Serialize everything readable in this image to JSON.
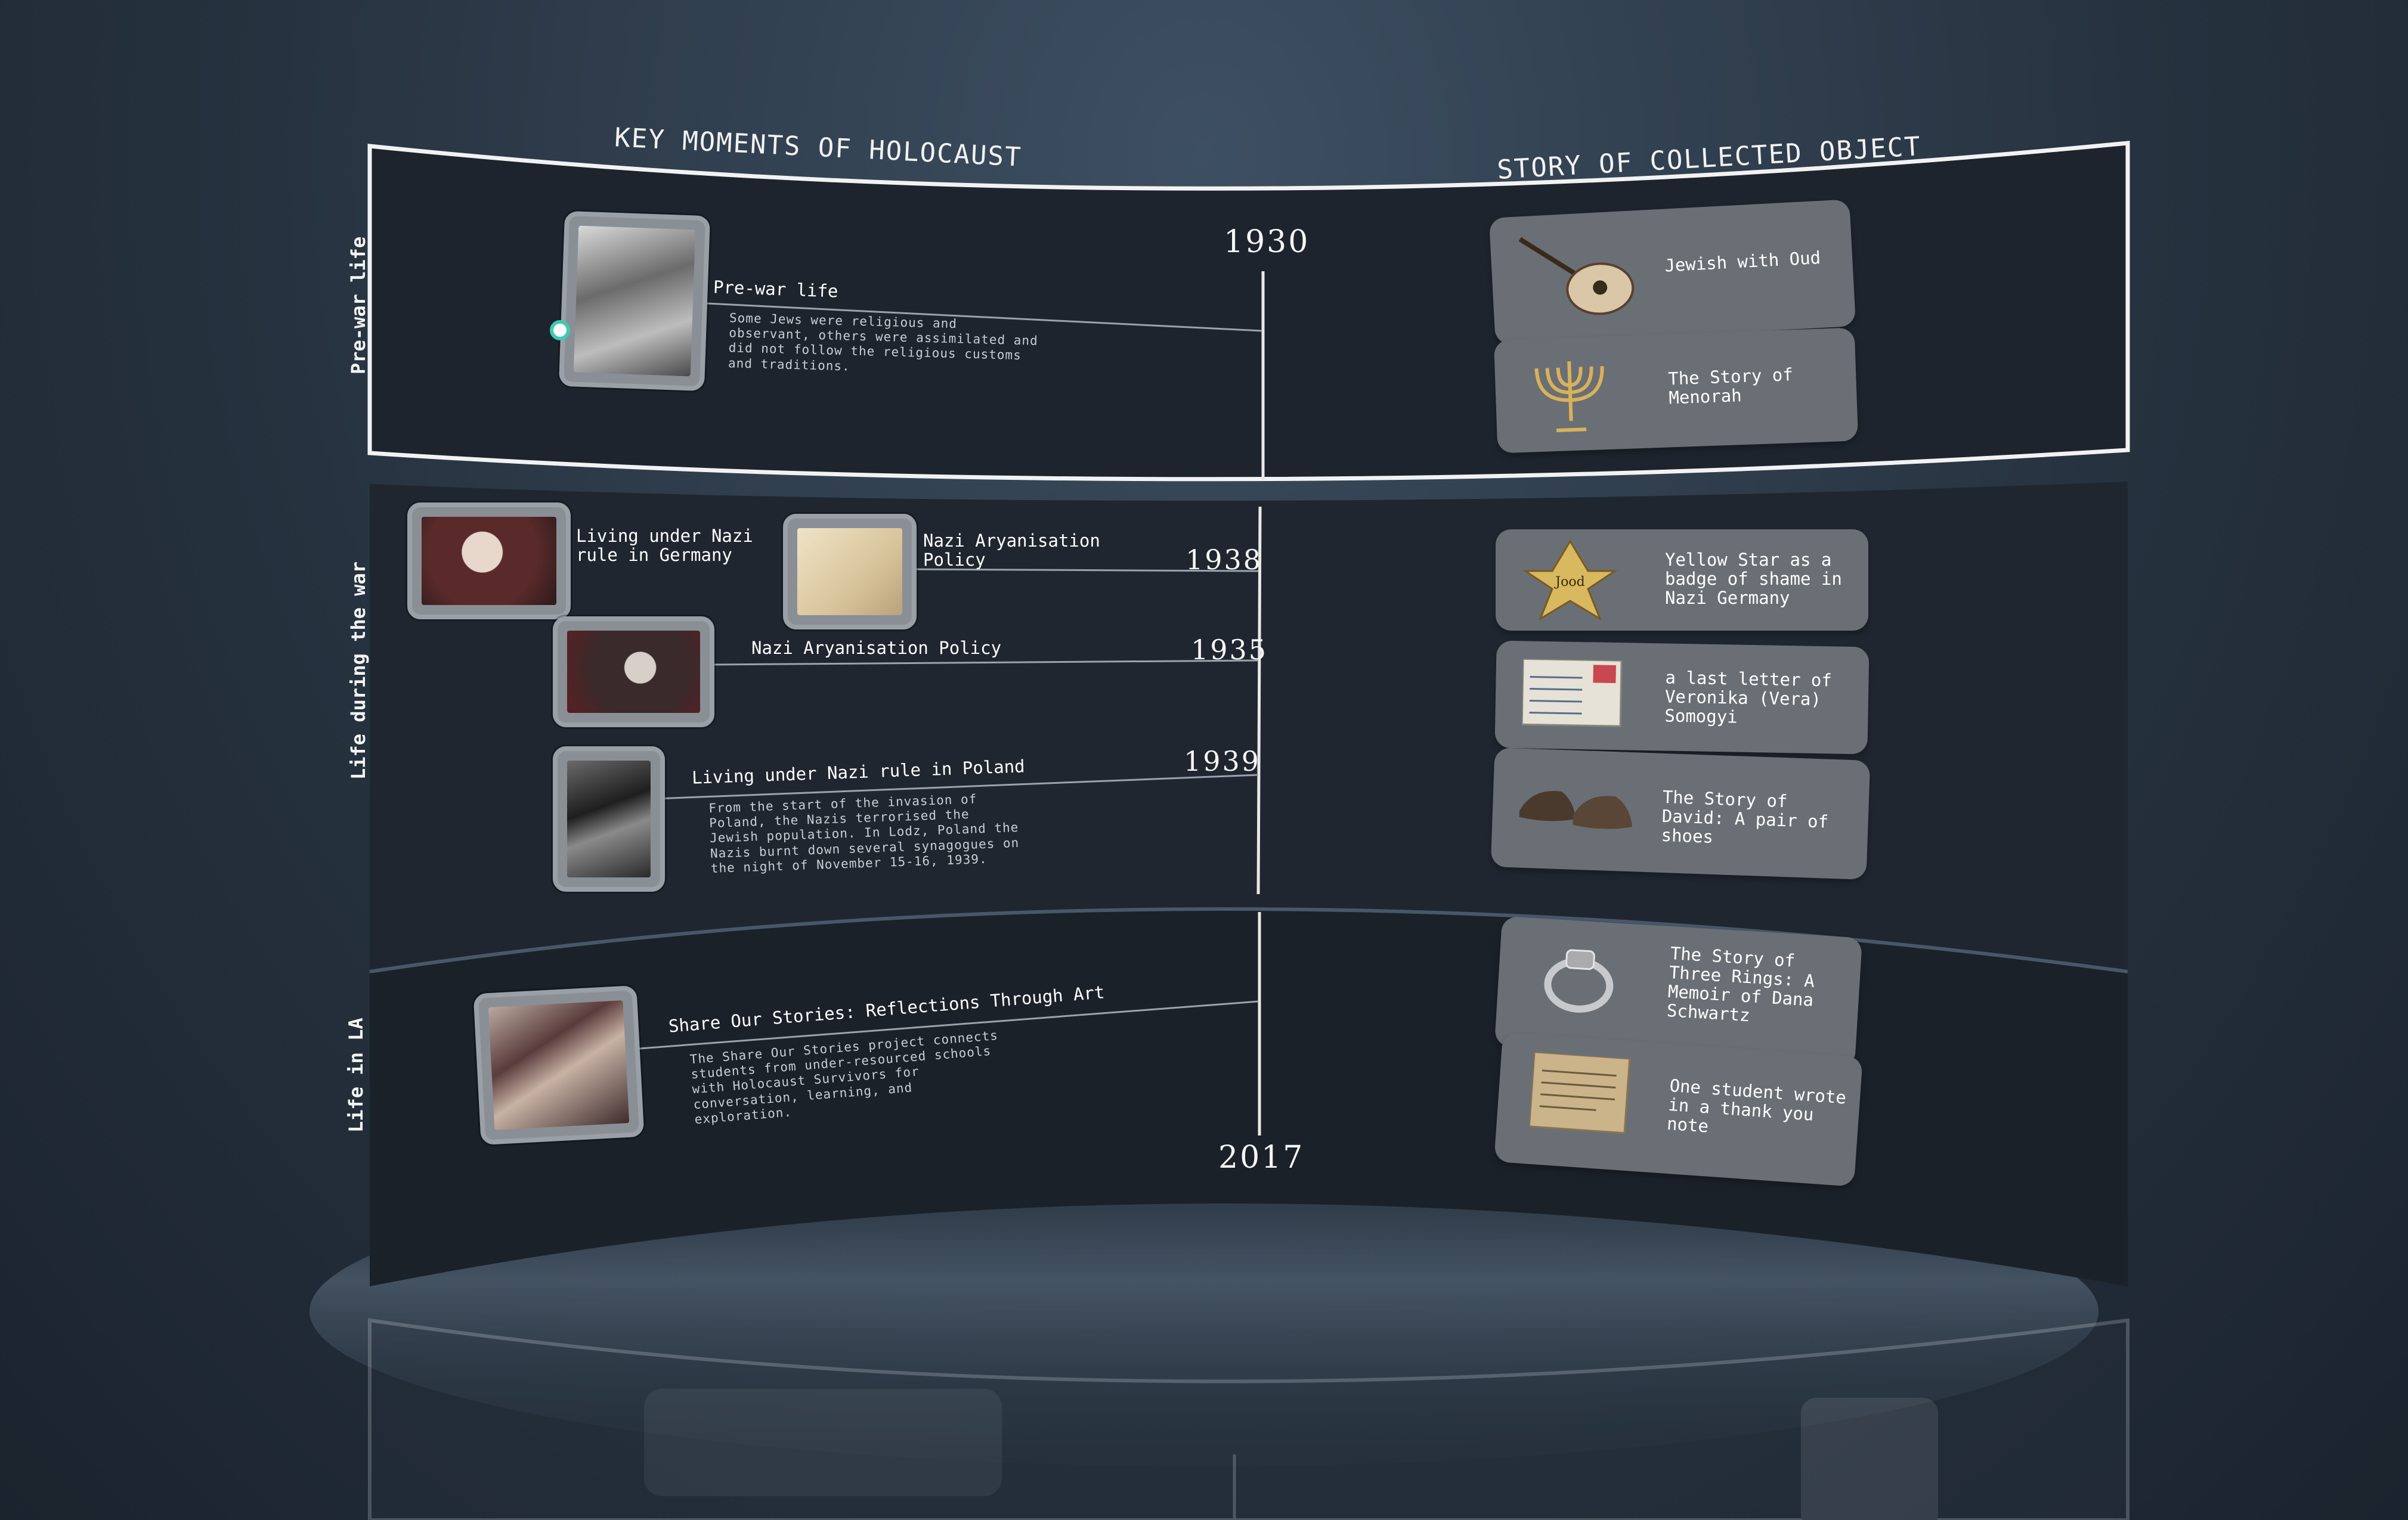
{
  "columns": {
    "left_heading": "KEY MOMENTS OF HOLOCAUST",
    "right_heading": "STORY OF COLLECTED OBJECT"
  },
  "sections": [
    {
      "id": "pre-war",
      "label": "Pre-war life"
    },
    {
      "id": "during-war",
      "label": "Life during the war"
    },
    {
      "id": "la",
      "label": "Life in LA"
    }
  ],
  "years": {
    "start": "1930",
    "end": "2017",
    "y1938": "1938",
    "y1935": "1935",
    "y1939": "1939"
  },
  "events": {
    "prewar": {
      "title": "Pre-war life",
      "desc": "Some Jews were religious and\nobservant, others were assimilated and\ndid not follow the religious customs\nand traditions."
    },
    "germany": {
      "title": "Living under Nazi\nrule in Germany"
    },
    "aryan1": {
      "title": "Nazi Aryanisation\nPolicy"
    },
    "aryan2": {
      "title": "Nazi Aryanisation Policy"
    },
    "poland": {
      "title": "Living under Nazi rule in Poland",
      "desc": "From the start of the invasion of\nPoland, the Nazis terrorised the\nJewish population. In Lodz, Poland the\nNazis burnt down several synagogues on\nthe night of November 15-16, 1939."
    },
    "share": {
      "title": "Share Our Stories: Reflections Through Art",
      "desc": "The Share Our Stories project connects\nstudents from under-resourced schools\nwith Holocaust Survivors for\nconversation, learning, and\nexploration."
    }
  },
  "objects": [
    {
      "label": "Jewish with Oud",
      "icon": "oud-icon"
    },
    {
      "label": "The Story of\nMenorah",
      "icon": "menorah-icon"
    },
    {
      "label": "Yellow Star as a\nbadge of shame in\nNazi Germany",
      "icon": "yellow-star-icon"
    },
    {
      "label": "a last letter of\nVeronika (Vera)\nSomogyi",
      "icon": "letter-icon"
    },
    {
      "label": "The Story of\nDavid: A pair of\nshoes",
      "icon": "shoes-icon"
    },
    {
      "label": "The Story of\nThree Rings: A\nMemoir of Dana\nSchwartz",
      "icon": "ring-icon"
    },
    {
      "label": "One student wrote\nin a thank you\nnote",
      "icon": "note-icon"
    }
  ],
  "star_text": "Jood",
  "colors": {
    "panel": "#1f262f",
    "card": "#6a6f76",
    "accent_dot": "#3fc9b0",
    "frame": "#f2f2f2"
  }
}
